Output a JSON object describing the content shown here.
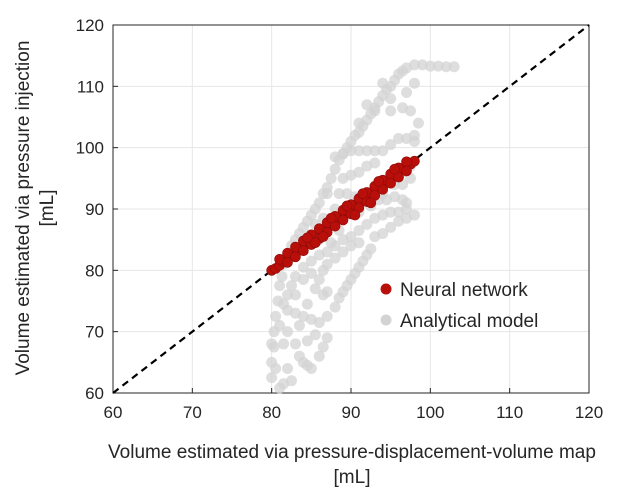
{
  "chart_data": {
    "type": "scatter",
    "title": "",
    "xlabel": [
      "Volume estimated via pressure-displacement-volume map",
      "[mL]"
    ],
    "ylabel": [
      "Volume estimated via pressure injection",
      "[mL]"
    ],
    "xlim": [
      60,
      120
    ],
    "ylim": [
      60,
      120
    ],
    "xticks": [
      "60",
      "70",
      "80",
      "90",
      "100",
      "110",
      "120"
    ],
    "yticks": [
      "60",
      "70",
      "80",
      "90",
      "100",
      "110",
      "120"
    ],
    "grid": true,
    "legend_position": "lower-right",
    "reference_line": {
      "style": "dashed",
      "color": "#000000",
      "from": [
        60,
        60
      ],
      "to": [
        120,
        120
      ]
    },
    "series": [
      {
        "name": "Analytical model",
        "color": "#d3d3d3",
        "points": [
          [
            80.0,
            62.5
          ],
          [
            80.0,
            65.0
          ],
          [
            80.3,
            67.5
          ],
          [
            80.3,
            70.0
          ],
          [
            80.5,
            72.5
          ],
          [
            80.8,
            75.0
          ],
          [
            81.0,
            77.5
          ],
          [
            81.3,
            79.0
          ],
          [
            81.5,
            81.0
          ],
          [
            82.0,
            82.5
          ],
          [
            82.5,
            84.0
          ],
          [
            83.0,
            85.0
          ],
          [
            83.5,
            86.0
          ],
          [
            84.0,
            87.0
          ],
          [
            84.5,
            88.0
          ],
          [
            85.0,
            89.0
          ],
          [
            85.5,
            90.0
          ],
          [
            86.0,
            91.0
          ],
          [
            86.5,
            92.5
          ],
          [
            87.0,
            93.5
          ],
          [
            87.5,
            95.0
          ],
          [
            88.0,
            96.5
          ],
          [
            88.5,
            98.0
          ],
          [
            89.0,
            99.0
          ],
          [
            89.5,
            100.0
          ],
          [
            90.0,
            101.0
          ],
          [
            90.5,
            102.0
          ],
          [
            91.0,
            102.5
          ],
          [
            91.5,
            103.5
          ],
          [
            92.0,
            104.5
          ],
          [
            92.5,
            105.5
          ],
          [
            93.0,
            106.5
          ],
          [
            93.5,
            107.5
          ],
          [
            94.0,
            108.5
          ],
          [
            94.5,
            109.5
          ],
          [
            95.0,
            110.0
          ],
          [
            95.5,
            111.0
          ],
          [
            96.0,
            112.0
          ],
          [
            96.5,
            112.5
          ],
          [
            97.0,
            113.0
          ],
          [
            98.0,
            113.5
          ],
          [
            99.0,
            113.5
          ],
          [
            100.0,
            113.3
          ],
          [
            101.0,
            113.3
          ],
          [
            102.0,
            113.2
          ],
          [
            103.0,
            113.2
          ],
          [
            96.0,
            101.5
          ],
          [
            97.0,
            101.5
          ],
          [
            98.0,
            101.0
          ],
          [
            95.0,
            100.5
          ],
          [
            94.0,
            99.5
          ],
          [
            93.0,
            99.5
          ],
          [
            92.0,
            99.5
          ],
          [
            91.0,
            99.5
          ],
          [
            90.0,
            99.5
          ],
          [
            89.0,
            99.0
          ],
          [
            88.0,
            98.5
          ],
          [
            93.0,
            106.0
          ],
          [
            95.0,
            106.0
          ],
          [
            96.5,
            106.5
          ],
          [
            97.5,
            106.0
          ],
          [
            98.5,
            104.0
          ],
          [
            98.0,
            102.0
          ],
          [
            87.0,
            92.5
          ],
          [
            88.5,
            92.5
          ],
          [
            89.5,
            92.5
          ],
          [
            90.5,
            92.0
          ],
          [
            91.5,
            92.0
          ],
          [
            92.5,
            92.0
          ],
          [
            93.5,
            91.5
          ],
          [
            94.5,
            91.5
          ],
          [
            95.5,
            92.0
          ],
          [
            96.5,
            91.5
          ],
          [
            97.0,
            91.0
          ],
          [
            93.0,
            88.5
          ],
          [
            94.0,
            89.0
          ],
          [
            95.0,
            89.5
          ],
          [
            96.0,
            89.5
          ],
          [
            97.0,
            90.0
          ],
          [
            92.0,
            87.5
          ],
          [
            91.0,
            86.5
          ],
          [
            90.0,
            85.5
          ],
          [
            89.0,
            85.0
          ],
          [
            88.0,
            84.0
          ],
          [
            87.0,
            83.0
          ],
          [
            86.0,
            82.5
          ],
          [
            85.0,
            81.5
          ],
          [
            84.0,
            80.5
          ],
          [
            83.0,
            79.0
          ],
          [
            82.5,
            77.5
          ],
          [
            82.0,
            76.0
          ],
          [
            81.5,
            74.5
          ],
          [
            82.0,
            73.5
          ],
          [
            83.0,
            73.0
          ],
          [
            84.0,
            72.5
          ],
          [
            85.0,
            72.0
          ],
          [
            86.0,
            71.5
          ],
          [
            87.0,
            72.5
          ],
          [
            88.0,
            74.0
          ],
          [
            88.5,
            75.5
          ],
          [
            89.0,
            76.5
          ],
          [
            89.5,
            77.5
          ],
          [
            90.0,
            78.5
          ],
          [
            90.5,
            79.5
          ],
          [
            91.0,
            80.5
          ],
          [
            91.5,
            81.5
          ],
          [
            92.0,
            82.5
          ],
          [
            92.5,
            83.5
          ],
          [
            87.0,
            76.5
          ],
          [
            86.5,
            76.0
          ],
          [
            83.0,
            68.0
          ],
          [
            83.5,
            66.0
          ],
          [
            84.0,
            65.0
          ],
          [
            84.5,
            64.5
          ],
          [
            85.0,
            64.0
          ],
          [
            86.0,
            66.0
          ],
          [
            86.5,
            67.5
          ],
          [
            87.0,
            69.0
          ],
          [
            82.0,
            64.0
          ],
          [
            81.5,
            61.5
          ],
          [
            81.0,
            60.8
          ],
          [
            82.5,
            62.0
          ],
          [
            84.5,
            68.5
          ],
          [
            85.5,
            69.5
          ],
          [
            81.5,
            68.0
          ],
          [
            82.0,
            70.0
          ],
          [
            83.5,
            71.0
          ],
          [
            84.5,
            74.5
          ],
          [
            85.5,
            77.0
          ],
          [
            86.0,
            78.5
          ],
          [
            86.5,
            80.0
          ],
          [
            87.0,
            81.0
          ],
          [
            88.0,
            82.0
          ],
          [
            89.0,
            83.0
          ],
          [
            90.0,
            84.0
          ],
          [
            91.0,
            84.5
          ],
          [
            93.0,
            85.5
          ],
          [
            94.0,
            86.0
          ],
          [
            95.0,
            87.0
          ],
          [
            96.0,
            88.0
          ],
          [
            97.0,
            88.5
          ],
          [
            98.0,
            89.0
          ],
          [
            97.5,
            95.0
          ],
          [
            97.5,
            97.0
          ],
          [
            96.5,
            94.0
          ],
          [
            91.0,
            96.0
          ],
          [
            92.0,
            97.0
          ],
          [
            93.0,
            97.5
          ],
          [
            89.0,
            95.0
          ],
          [
            90.0,
            95.5
          ],
          [
            88.0,
            90.0
          ],
          [
            89.5,
            90.5
          ],
          [
            91.0,
            89.5
          ],
          [
            92.5,
            90.5
          ],
          [
            94.0,
            92.5
          ],
          [
            95.5,
            94.0
          ],
          [
            96.5,
            96.0
          ],
          [
            85.5,
            87.5
          ],
          [
            86.5,
            88.5
          ],
          [
            84.0,
            78.5
          ],
          [
            83.0,
            76.0
          ],
          [
            85.0,
            79.5
          ],
          [
            87.5,
            84.5
          ],
          [
            88.5,
            86.5
          ],
          [
            86.0,
            85.0
          ],
          [
            80.0,
            68.0
          ],
          [
            80.5,
            64.0
          ],
          [
            81.0,
            71.0
          ],
          [
            92.0,
            107.0
          ],
          [
            94.0,
            110.5
          ],
          [
            95.0,
            108.0
          ],
          [
            97.0,
            109.0
          ],
          [
            98.0,
            110.5
          ],
          [
            91.0,
            104.0
          ]
        ]
      },
      {
        "name": "Neural network",
        "color": "#b80f0a",
        "points": [
          [
            80.0,
            80.0
          ],
          [
            80.5,
            80.3
          ],
          [
            81.0,
            80.8
          ],
          [
            81.5,
            81.5
          ],
          [
            82.0,
            81.8
          ],
          [
            82.5,
            82.3
          ],
          [
            83.0,
            82.9
          ],
          [
            83.5,
            83.3
          ],
          [
            84.0,
            84.0
          ],
          [
            84.5,
            84.4
          ],
          [
            85.0,
            84.9
          ],
          [
            85.5,
            85.6
          ],
          [
            86.0,
            86.0
          ],
          [
            86.5,
            86.3
          ],
          [
            87.0,
            87.1
          ],
          [
            87.5,
            87.4
          ],
          [
            88.0,
            87.8
          ],
          [
            88.5,
            88.6
          ],
          [
            89.0,
            89.0
          ],
          [
            89.5,
            89.3
          ],
          [
            90.0,
            89.9
          ],
          [
            90.5,
            90.6
          ],
          [
            91.0,
            91.0
          ],
          [
            91.5,
            91.3
          ],
          [
            92.0,
            91.8
          ],
          [
            92.5,
            92.6
          ],
          [
            93.0,
            93.1
          ],
          [
            93.5,
            93.4
          ],
          [
            94.0,
            93.8
          ],
          [
            94.5,
            94.6
          ],
          [
            95.0,
            95.0
          ],
          [
            95.5,
            95.3
          ],
          [
            96.0,
            95.9
          ],
          [
            96.5,
            96.6
          ],
          [
            97.0,
            97.0
          ],
          [
            97.5,
            97.3
          ],
          [
            98.0,
            97.8
          ],
          [
            81.0,
            81.8
          ],
          [
            82.0,
            82.8
          ],
          [
            83.0,
            83.8
          ],
          [
            84.0,
            84.8
          ],
          [
            85.0,
            85.8
          ],
          [
            86.0,
            86.8
          ],
          [
            87.0,
            87.8
          ],
          [
            88.0,
            88.8
          ],
          [
            89.0,
            89.8
          ],
          [
            90.0,
            90.7
          ],
          [
            91.0,
            91.7
          ],
          [
            92.0,
            92.7
          ],
          [
            93.0,
            93.7
          ],
          [
            94.0,
            94.7
          ],
          [
            95.0,
            95.7
          ],
          [
            96.0,
            96.7
          ],
          [
            97.0,
            97.7
          ],
          [
            82.0,
            81.3
          ],
          [
            83.0,
            82.2
          ],
          [
            84.0,
            83.2
          ],
          [
            85.0,
            84.2
          ],
          [
            86.0,
            85.2
          ],
          [
            87.0,
            86.2
          ],
          [
            88.0,
            87.2
          ],
          [
            89.0,
            88.2
          ],
          [
            90.0,
            89.2
          ],
          [
            91.0,
            90.2
          ],
          [
            92.0,
            91.2
          ],
          [
            93.0,
            92.2
          ],
          [
            94.0,
            93.2
          ],
          [
            95.0,
            94.2
          ],
          [
            96.0,
            95.2
          ],
          [
            97.0,
            96.2
          ],
          [
            85.5,
            84.5
          ],
          [
            86.5,
            85.5
          ],
          [
            90.5,
            89.0
          ],
          [
            92.5,
            91.0
          ],
          [
            87.5,
            88.5
          ],
          [
            89.5,
            90.5
          ],
          [
            93.5,
            94.5
          ],
          [
            95.5,
            96.5
          ],
          [
            84.5,
            85.3
          ],
          [
            91.5,
            92.5
          ]
        ]
      }
    ]
  }
}
